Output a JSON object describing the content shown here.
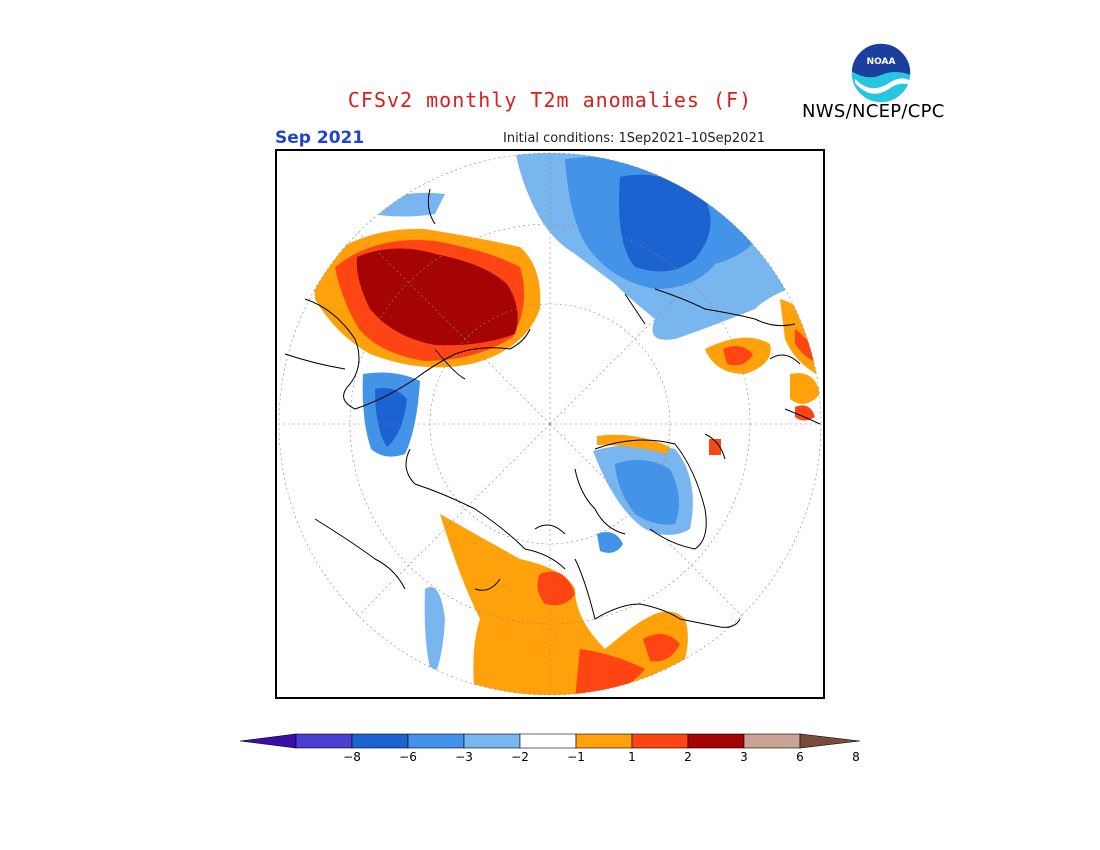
{
  "title": "CFSv2 monthly T2m anomalies (F)",
  "month": "Sep 2021",
  "initial_conditions": "Initial conditions: 1Sep2021–10Sep2021",
  "agency": "NWS/NCEP/CPC",
  "logo_text": "NOAA",
  "colorbar": {
    "bins": [
      {
        "color": "#3a0fa8"
      },
      {
        "color": "#4a3fd0"
      },
      {
        "color": "#1c63d1"
      },
      {
        "color": "#4394e8"
      },
      {
        "color": "#79b6f0"
      },
      {
        "color": "#ffffff"
      },
      {
        "color": "#ffa10a"
      },
      {
        "color": "#ff4514"
      },
      {
        "color": "#a50404"
      },
      {
        "color": "#c8a292"
      },
      {
        "color": "#7a4b3b"
      }
    ],
    "labels": [
      "−8",
      "−6",
      "−3",
      "−2",
      "−1",
      "1",
      "2",
      "3",
      "6",
      "8"
    ]
  }
}
